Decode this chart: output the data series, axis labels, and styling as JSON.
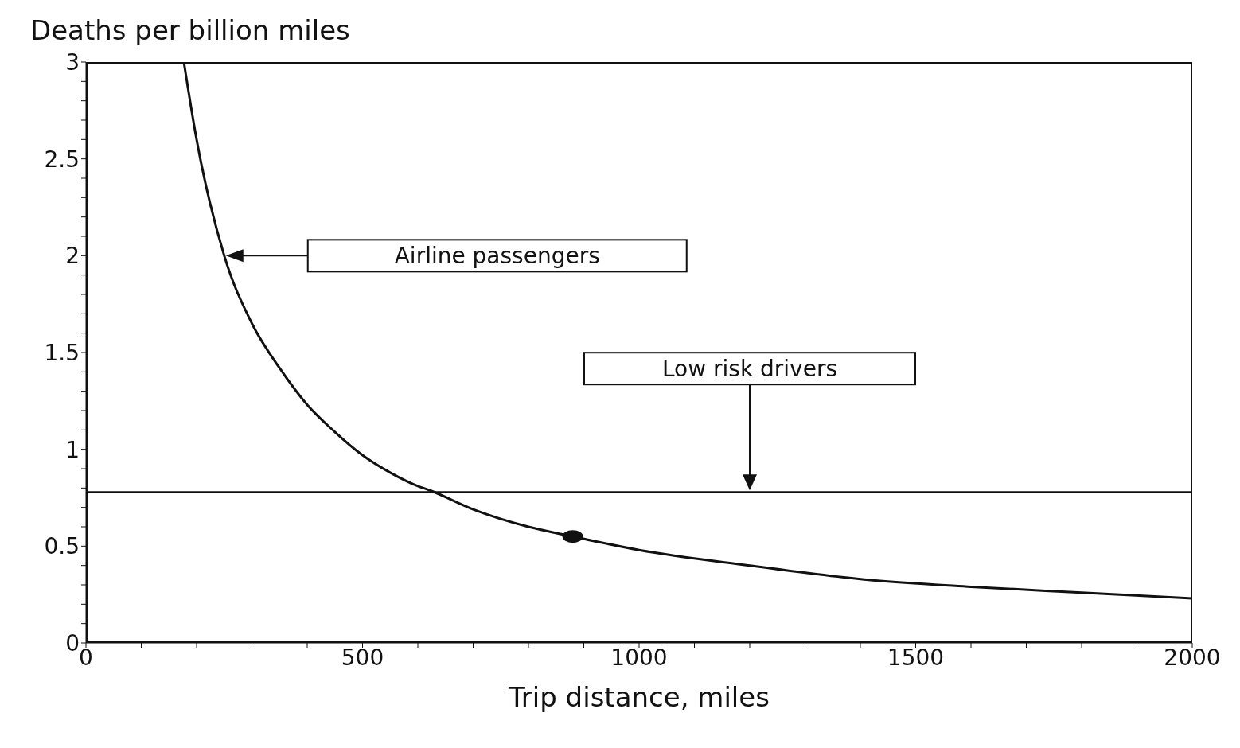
{
  "chart_data": {
    "type": "line",
    "title": "Deaths per billion miles",
    "xlabel": "Trip distance, miles",
    "xlim": [
      0,
      2000
    ],
    "xticks": [
      0,
      {
        "value": 100,
        "label": null
      },
      {
        "value": 200,
        "label": null
      },
      {
        "value": 300,
        "label": null
      },
      {
        "value": 400,
        "label": null
      },
      500,
      {
        "value": 600,
        "label": null
      },
      {
        "value": 700,
        "label": null
      },
      {
        "value": 800,
        "label": null
      },
      {
        "value": 900,
        "label": null
      },
      1000,
      {
        "value": 1100,
        "label": null
      },
      {
        "value": 1200,
        "label": null
      },
      {
        "value": 1300,
        "label": null
      },
      {
        "value": 1400,
        "label": null
      },
      1500,
      {
        "value": 1600,
        "label": null
      },
      {
        "value": 1700,
        "label": null
      },
      {
        "value": 1800,
        "label": null
      },
      {
        "value": 1900,
        "label": null
      },
      2000
    ],
    "ylim": [
      0,
      3
    ],
    "yticks": [
      0,
      {
        "value": 0.1,
        "label": null
      },
      {
        "value": 0.2,
        "label": null
      },
      {
        "value": 0.3,
        "label": null
      },
      {
        "value": 0.4,
        "label": null
      },
      0.5,
      {
        "value": 0.6,
        "label": null
      },
      {
        "value": 0.7,
        "label": null
      },
      {
        "value": 0.8,
        "label": null
      },
      {
        "value": 0.9,
        "label": null
      },
      1,
      {
        "value": 1.1,
        "label": null
      },
      {
        "value": 1.2,
        "label": null
      },
      {
        "value": 1.3,
        "label": null
      },
      {
        "value": 1.4,
        "label": null
      },
      1.5,
      {
        "value": 1.6,
        "label": null
      },
      {
        "value": 1.7,
        "label": null
      },
      {
        "value": 1.8,
        "label": null
      },
      {
        "value": 1.9,
        "label": null
      },
      2,
      {
        "value": 2.1,
        "label": null
      },
      {
        "value": 2.2,
        "label": null
      },
      {
        "value": 2.3,
        "label": null
      },
      {
        "value": 2.4,
        "label": null
      },
      2.5,
      {
        "value": 2.6,
        "label": null
      },
      {
        "value": 2.7,
        "label": null
      },
      {
        "value": 2.8,
        "label": null
      },
      {
        "value": 2.9,
        "label": null
      },
      3
    ],
    "marker": "none",
    "line_style": "solid",
    "series": [
      {
        "name": "Airline passengers",
        "color": "#111111",
        "x": [
          177,
          200,
          250,
          300,
          350,
          400,
          450,
          500,
          550,
          600,
          620,
          700,
          800,
          880,
          1000,
          1200,
          1400,
          1600,
          1800,
          2000
        ],
        "values": [
          3,
          2.6,
          2,
          1.65,
          1.42,
          1.23,
          1.09,
          0.97,
          0.88,
          0.81,
          0.79,
          0.69,
          0.6,
          0.55,
          0.48,
          0.4,
          0.33,
          0.29,
          0.26,
          0.23
        ]
      },
      {
        "name": "Low risk drivers",
        "color": "#111111",
        "x": [
          0,
          1200,
          2000
        ],
        "values": [
          0.78,
          0.78,
          0.78
        ]
      },
      {
        "type": "scatter",
        "marker": "circle",
        "color": "#111111",
        "x": [
          880
        ],
        "values": [
          0.55
        ]
      }
    ]
  }
}
